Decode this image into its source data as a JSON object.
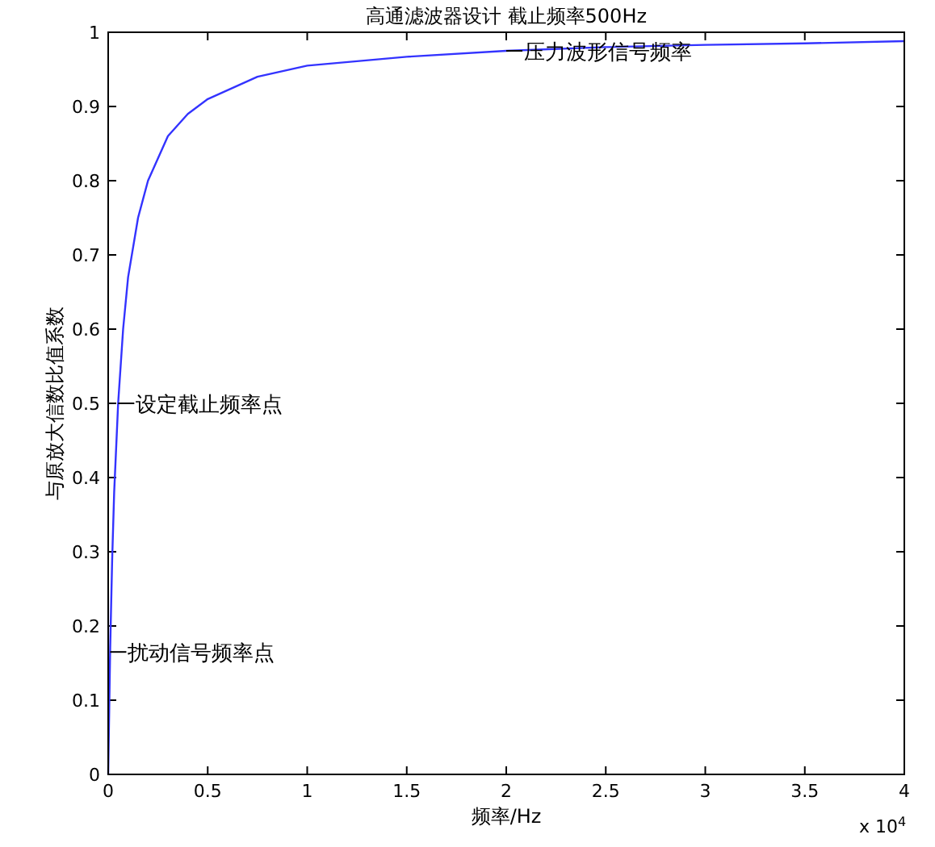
{
  "chart_data": {
    "type": "line",
    "title": "高通滤波器设计 截止频率500Hz",
    "xlabel": "频率/Hz",
    "ylabel": "与原放大信数比值系数",
    "x": [
      0,
      0.01,
      0.02,
      0.03,
      0.05,
      0.075,
      0.1,
      0.15,
      0.2,
      0.3,
      0.4,
      0.5,
      0.75,
      1,
      1.5,
      2,
      2.5,
      3,
      3.5,
      4
    ],
    "series": [
      {
        "color": "#3333ff",
        "values": [
          0,
          0.17,
          0.29,
          0.38,
          0.5,
          0.6,
          0.67,
          0.75,
          0.8,
          0.86,
          0.89,
          0.91,
          0.94,
          0.955,
          0.967,
          0.975,
          0.98,
          0.983,
          0.985,
          0.988
        ]
      }
    ],
    "xlim": [
      0,
      4
    ],
    "ylim": [
      0,
      1
    ],
    "xticks": [
      0,
      0.5,
      1,
      1.5,
      2,
      2.5,
      3,
      3.5,
      4
    ],
    "yticks": [
      0,
      0.1,
      0.2,
      0.3,
      0.4,
      0.5,
      0.6,
      0.7,
      0.8,
      0.9,
      1
    ],
    "annotations": [
      {
        "text": "设定截止频率点",
        "x": 0.05,
        "y": 0.5
      },
      {
        "text": "扰动信号频率点",
        "x": 0.01,
        "y": 0.165
      },
      {
        "text": "压力波形信号频率",
        "x": 2,
        "y": 0.975
      },
      "x 10$^{4}$"
    ],
    "grid": false,
    "marker": "none",
    "line_style": "solid"
  }
}
